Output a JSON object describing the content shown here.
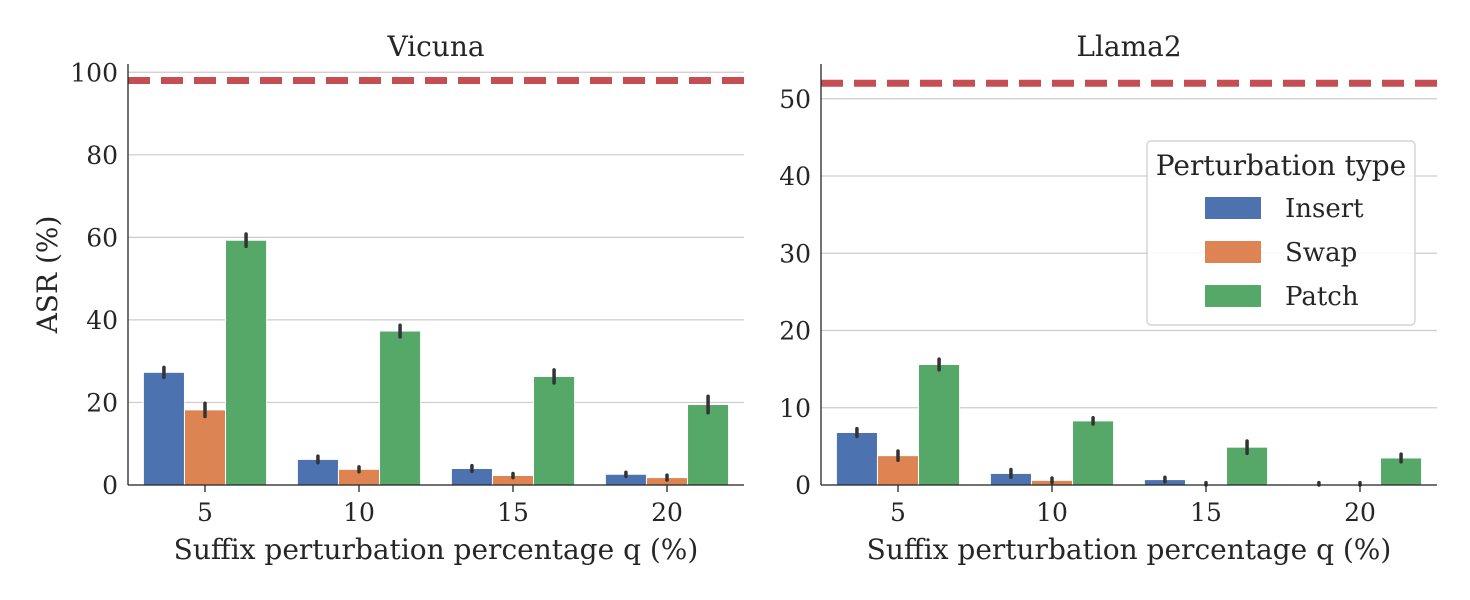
{
  "chart_data": [
    {
      "type": "bar",
      "title": "Vicuna",
      "xlabel": "Suffix perturbation percentage q (%)",
      "ylabel": "ASR (%)",
      "categories": [
        "5",
        "10",
        "15",
        "20"
      ],
      "ylim": [
        0,
        102
      ],
      "yticks": [
        0,
        20,
        40,
        60,
        80,
        100
      ],
      "grid": "y",
      "reference_line": 98,
      "series": [
        {
          "name": "Insert",
          "values": [
            27.3,
            6.2,
            4.0,
            2.6
          ],
          "error": [
            1.2,
            0.8,
            0.7,
            0.5
          ]
        },
        {
          "name": "Swap",
          "values": [
            18.2,
            3.8,
            2.3,
            1.8
          ],
          "error": [
            1.6,
            0.6,
            0.5,
            0.6
          ]
        },
        {
          "name": "Patch",
          "values": [
            59.3,
            37.3,
            26.3,
            19.5
          ],
          "error": [
            1.5,
            1.4,
            1.6,
            2.0
          ]
        }
      ]
    },
    {
      "type": "bar",
      "title": "Llama2",
      "xlabel": "Suffix perturbation percentage q (%)",
      "ylabel": "",
      "categories": [
        "5",
        "10",
        "15",
        "20"
      ],
      "ylim": [
        0,
        54.5
      ],
      "yticks": [
        0,
        10,
        20,
        30,
        40,
        50
      ],
      "grid": "y",
      "reference_line": 52,
      "series": [
        {
          "name": "Insert",
          "values": [
            6.8,
            1.5,
            0.7,
            0.1
          ],
          "error": [
            0.5,
            0.5,
            0.3,
            0.2
          ]
        },
        {
          "name": "Swap",
          "values": [
            3.8,
            0.6,
            0.1,
            0.1
          ],
          "error": [
            0.6,
            0.3,
            0.2,
            0.2
          ]
        },
        {
          "name": "Patch",
          "values": [
            15.6,
            8.3,
            4.9,
            3.5
          ],
          "error": [
            0.7,
            0.4,
            0.8,
            0.5
          ]
        }
      ]
    }
  ],
  "legend": {
    "title": "Perturbation type",
    "position": "right",
    "items": [
      "Insert",
      "Swap",
      "Patch"
    ]
  },
  "colors": {
    "Insert": "#4c72b0",
    "Swap": "#dd8452",
    "Patch": "#55a868",
    "reference": "#c44e52",
    "grid": "#cccccc",
    "axis": "#262626",
    "errorbar": "#333333"
  }
}
